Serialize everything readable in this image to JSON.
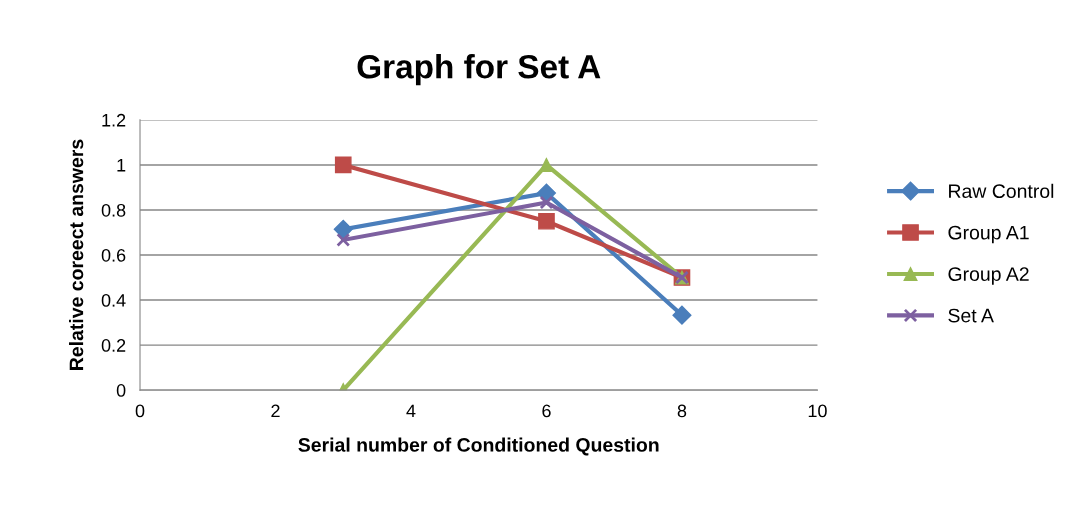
{
  "chart_data": {
    "type": "line",
    "title": "Graph for Set A",
    "xlabel": "Serial number of Conditioned Question",
    "ylabel": "Relative coreect answers",
    "x": [
      3,
      6,
      8
    ],
    "series": [
      {
        "name": "Raw Control",
        "color": "#4a7ebb",
        "marker": "diamond",
        "values": [
          0.714,
          0.875,
          0.333
        ]
      },
      {
        "name": "Group A1",
        "color": "#be4b48",
        "marker": "square",
        "values": [
          1,
          0.75,
          0.5
        ]
      },
      {
        "name": "Group A2",
        "color": "#98b954",
        "marker": "triangle",
        "values": [
          0,
          1,
          0.5
        ]
      },
      {
        "name": "Set A",
        "color": "#7d60a0",
        "marker": "cross",
        "values": [
          0.667,
          0.833,
          0.5
        ]
      }
    ],
    "xlim": [
      0,
      10
    ],
    "xticks": [
      0,
      2,
      4,
      6,
      8,
      10
    ],
    "ylim": [
      0,
      1.2
    ],
    "yticks": [
      0,
      0.2,
      0.4,
      0.6,
      0.8,
      1,
      1.2
    ],
    "grid": "y",
    "legend": "right",
    "line_style": "solid"
  }
}
